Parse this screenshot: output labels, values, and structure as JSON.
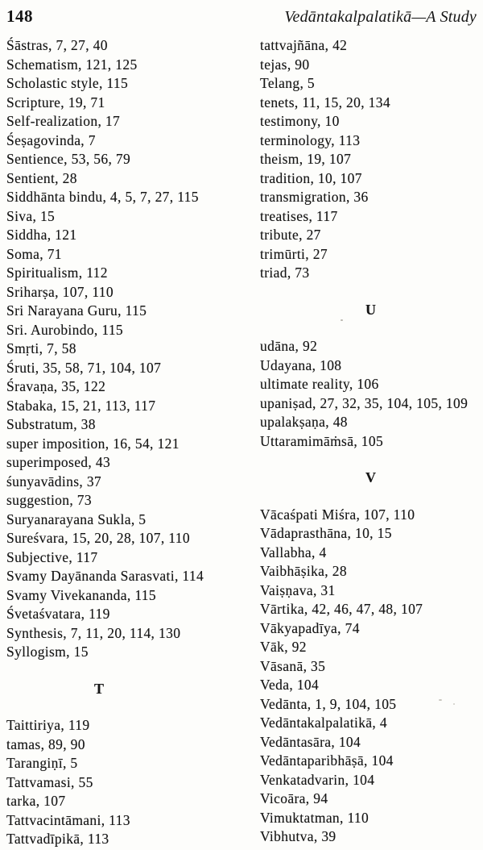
{
  "colors": {
    "paper": "#fdfdfb",
    "ink": "#161616"
  },
  "header": {
    "page_number": "148",
    "running_title": "Vedāntakalpalatikā—A Study"
  },
  "index": {
    "left_column": [
      {
        "term": "Śāstras",
        "pages": [
          7,
          27,
          40
        ]
      },
      {
        "term": "Schematism",
        "pages": [
          121,
          125
        ]
      },
      {
        "term": "Scholastic style",
        "pages": [
          115
        ]
      },
      {
        "term": "Scripture",
        "pages": [
          19,
          71
        ]
      },
      {
        "term": "Self-realization",
        "pages": [
          17
        ]
      },
      {
        "term": "Śeṣagovinda",
        "pages": [
          7
        ]
      },
      {
        "term": "Sentience",
        "pages": [
          53,
          56,
          79
        ]
      },
      {
        "term": "Sentient",
        "pages": [
          28
        ]
      },
      {
        "term": "Siddhānta bindu",
        "pages": [
          4,
          5,
          7,
          27,
          115
        ]
      },
      {
        "term": "Siva",
        "pages": [
          15
        ]
      },
      {
        "term": "Siddha",
        "pages": [
          121
        ]
      },
      {
        "term": "Soma",
        "pages": [
          71
        ]
      },
      {
        "term": "Spiritualism",
        "pages": [
          112
        ]
      },
      {
        "term": "Sriharṣa",
        "pages": [
          107,
          110
        ]
      },
      {
        "term": "Sri Narayana Guru",
        "pages": [
          115
        ]
      },
      {
        "term": "Sri. Aurobindo",
        "pages": [
          115
        ]
      },
      {
        "term": "Smṛti",
        "pages": [
          7,
          58
        ]
      },
      {
        "term": "Śruti",
        "pages": [
          35,
          58,
          71,
          104,
          107
        ]
      },
      {
        "term": "Śravaṇa",
        "pages": [
          35,
          122
        ]
      },
      {
        "term": "Stabaka",
        "pages": [
          15,
          21,
          113,
          117
        ]
      },
      {
        "term": "Substratum",
        "pages": [
          38
        ]
      },
      {
        "term": "super imposition",
        "pages": [
          16,
          54,
          121
        ]
      },
      {
        "term": "superimposed",
        "pages": [
          43
        ]
      },
      {
        "term": "śunyavādins",
        "pages": [
          37
        ]
      },
      {
        "term": "suggestion",
        "pages": [
          73
        ]
      },
      {
        "term": "Suryanarayana Sukla",
        "pages": [
          5
        ]
      },
      {
        "term": "Sureśvara",
        "pages": [
          15,
          20,
          28,
          107,
          110
        ]
      },
      {
        "term": "Subjective",
        "pages": [
          117
        ]
      },
      {
        "term": "Svamy Dayānanda Sarasvati",
        "pages": [
          114
        ]
      },
      {
        "term": "Svamy Vivekananda",
        "pages": [
          115
        ]
      },
      {
        "term": "Śvetaśvatara",
        "pages": [
          119
        ]
      },
      {
        "term": "Synthesis",
        "pages": [
          7,
          11,
          20,
          114,
          130
        ]
      },
      {
        "term": "Syllogism",
        "pages": [
          15
        ]
      },
      {
        "heading": "T"
      },
      {
        "term": "Taittiriya",
        "pages": [
          119
        ]
      },
      {
        "term": "tamas",
        "pages": [
          89,
          90
        ]
      },
      {
        "term": "Tarangiṇī",
        "pages": [
          5
        ]
      },
      {
        "term": "Tattvamasi",
        "pages": [
          55
        ]
      },
      {
        "term": "tarka",
        "pages": [
          107
        ]
      },
      {
        "term": "Tattvacintāmani",
        "pages": [
          113
        ]
      },
      {
        "term": "Tattvadīpikā",
        "pages": [
          113
        ]
      }
    ],
    "right_column": [
      {
        "term": "tattvajñāna",
        "pages": [
          42
        ]
      },
      {
        "term": "tejas",
        "pages": [
          90
        ]
      },
      {
        "term": "Telang",
        "pages": [
          5
        ]
      },
      {
        "term": "tenets",
        "pages": [
          11,
          15,
          20,
          134
        ]
      },
      {
        "term": "testimony",
        "pages": [
          10
        ]
      },
      {
        "term": "terminology",
        "pages": [
          113
        ]
      },
      {
        "term": "theism",
        "pages": [
          19,
          107
        ]
      },
      {
        "term": "tradition",
        "pages": [
          10,
          107
        ]
      },
      {
        "term": "transmigration",
        "pages": [
          36
        ]
      },
      {
        "term": "treatises",
        "pages": [
          117
        ]
      },
      {
        "term": "tribute",
        "pages": [
          27
        ]
      },
      {
        "term": "trimūrti",
        "pages": [
          27
        ]
      },
      {
        "term": "triad",
        "pages": [
          73
        ]
      },
      {
        "heading": "U"
      },
      {
        "term": "udāna",
        "pages": [
          92
        ]
      },
      {
        "term": "Udayana",
        "pages": [
          108
        ]
      },
      {
        "term": "ultimate reality",
        "pages": [
          106
        ]
      },
      {
        "term": "upaniṣad",
        "pages": [
          27,
          32,
          35,
          104,
          105,
          109
        ]
      },
      {
        "term": "upalakṣaṇa",
        "pages": [
          48
        ]
      },
      {
        "term": "Uttaramimāṁsā",
        "pages": [
          105
        ]
      },
      {
        "heading": "V"
      },
      {
        "term": "Vācaśpati Miśra",
        "pages": [
          107,
          110
        ]
      },
      {
        "term": "Vādaprasthāna",
        "pages": [
          10,
          15
        ]
      },
      {
        "term": "Vallabha",
        "pages": [
          4
        ]
      },
      {
        "term": "Vaibhāṣika",
        "pages": [
          28
        ]
      },
      {
        "term": "Vaiṣṇava",
        "pages": [
          31
        ]
      },
      {
        "term": "Vārtika",
        "pages": [
          42,
          46,
          47,
          48,
          107
        ]
      },
      {
        "term": "Vākyapadīya",
        "pages": [
          74
        ]
      },
      {
        "term": "Vāk",
        "pages": [
          92
        ]
      },
      {
        "term": "Vāsanā",
        "pages": [
          35
        ]
      },
      {
        "term": "Veda",
        "pages": [
          104
        ]
      },
      {
        "term": "Vedānta",
        "pages": [
          1,
          9,
          104,
          105
        ]
      },
      {
        "term": "Vedāntakalpalatikā",
        "pages": [
          4
        ]
      },
      {
        "term": "Vedāntasāra",
        "pages": [
          104
        ]
      },
      {
        "term": "Vedāntaparibhāṣā",
        "pages": [
          104
        ]
      },
      {
        "term": "Venkatadvarin",
        "pages": [
          104
        ]
      },
      {
        "term": "Vicoāra",
        "pages": [
          94
        ]
      },
      {
        "term": "Vimuktatman",
        "pages": [
          110
        ]
      },
      {
        "term": "Vibhutva",
        "pages": [
          39
        ]
      }
    ]
  }
}
